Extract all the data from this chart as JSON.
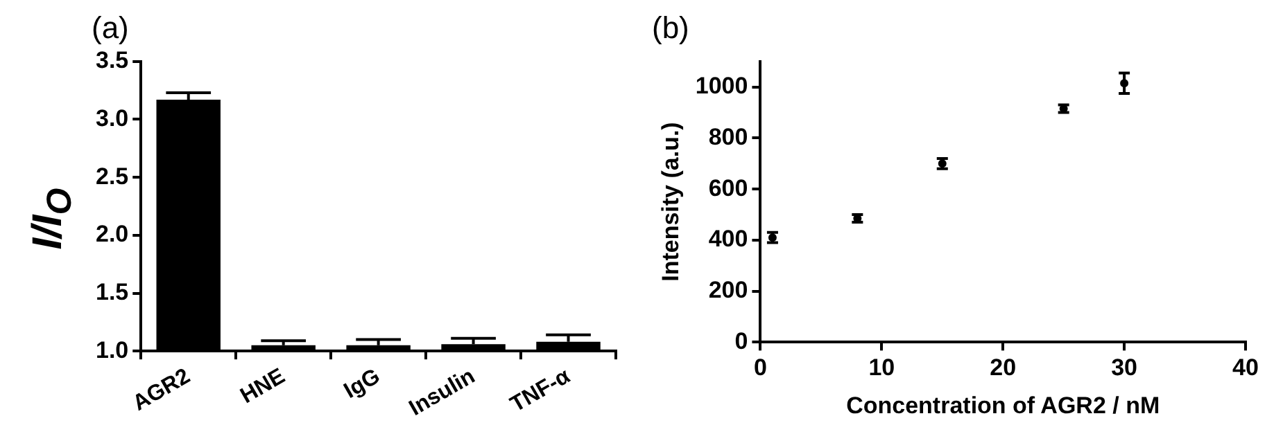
{
  "chart_data": [
    {
      "type": "bar",
      "title": "(a)",
      "ylabel": "I/I$_{O}$",
      "categories": [
        "AGR2",
        "HNE",
        "IgG",
        "Insulin",
        "TNF-α"
      ],
      "values": [
        3.17,
        1.05,
        1.05,
        1.06,
        1.08
      ],
      "errors": [
        [
          3.17,
          3.23
        ],
        [
          1.05,
          1.09
        ],
        [
          1.05,
          1.1
        ],
        [
          1.06,
          1.11
        ],
        [
          1.08,
          1.14
        ]
      ],
      "color": "#000000",
      "ylim": [
        1.0,
        3.5
      ],
      "yticks": [
        {
          "value": 1,
          "label": "1.0"
        },
        1.5,
        {
          "value": 2,
          "label": "2.0"
        },
        2.5,
        {
          "value": 3,
          "label": "3.0"
        },
        3.5
      ],
      "grid": false,
      "legend": false
    },
    {
      "type": "scatter",
      "title": "(b)",
      "xlabel": "Concentration of AGR2 / nM",
      "ylabel": "Intensity (a.u.)",
      "x": [
        1,
        8,
        15,
        25,
        30
      ],
      "values": [
        410,
        485,
        700,
        915,
        1015
      ],
      "errors": [
        20,
        15,
        20,
        15,
        40
      ],
      "color": "#000000",
      "marker": "circle",
      "xlim": [
        0,
        40
      ],
      "xticks": [
        0,
        10,
        20,
        30,
        40
      ],
      "ylim": [
        0,
        1100
      ],
      "yticks": [
        0,
        200,
        400,
        600,
        800,
        1000
      ],
      "grid": false,
      "legend": false
    }
  ]
}
